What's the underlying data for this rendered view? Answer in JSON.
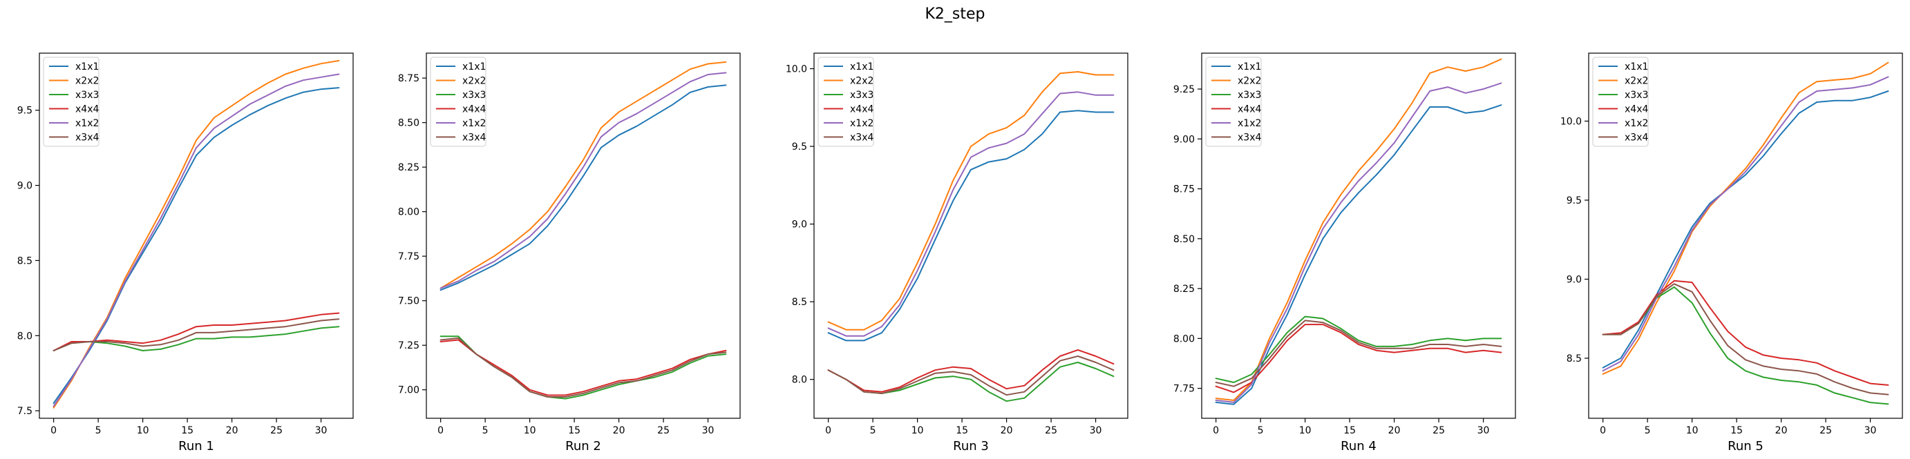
{
  "figure": {
    "title": "K2_step"
  },
  "chart_data": [
    {
      "type": "line",
      "xlabel": "Run 1",
      "xlim": [
        -1.6,
        33.6
      ],
      "ylim": [
        7.45,
        9.88
      ],
      "xticks": [
        0,
        5,
        10,
        15,
        20,
        25,
        30
      ],
      "yticks": [
        7.5,
        8.0,
        8.5,
        9.0,
        9.5
      ],
      "ytick_labels": [
        "7.5",
        "8.0",
        "8.5",
        "9.0",
        "9.5"
      ],
      "legend": "upper left",
      "x": [
        0,
        2,
        4,
        6,
        8,
        10,
        12,
        14,
        16,
        18,
        20,
        22,
        24,
        26,
        28,
        30,
        32
      ],
      "series": [
        {
          "name": "x1x1",
          "color": "#1f77b4",
          "values": [
            7.55,
            7.72,
            7.9,
            8.1,
            8.35,
            8.55,
            8.75,
            8.98,
            9.2,
            9.32,
            9.4,
            9.47,
            9.53,
            9.58,
            9.62,
            9.64,
            9.65
          ]
        },
        {
          "name": "x2x2",
          "color": "#ff7f0e",
          "values": [
            7.52,
            7.7,
            7.92,
            8.12,
            8.38,
            8.6,
            8.82,
            9.05,
            9.3,
            9.45,
            9.53,
            9.61,
            9.68,
            9.74,
            9.78,
            9.81,
            9.83
          ]
        },
        {
          "name": "x3x3",
          "color": "#2ca02c",
          "values": [
            7.9,
            7.95,
            7.96,
            7.95,
            7.93,
            7.9,
            7.91,
            7.94,
            7.98,
            7.98,
            7.99,
            7.99,
            8.0,
            8.01,
            8.03,
            8.05,
            8.06
          ]
        },
        {
          "name": "x4x4",
          "color": "#d62728",
          "values": [
            7.9,
            7.96,
            7.96,
            7.97,
            7.96,
            7.95,
            7.97,
            8.01,
            8.06,
            8.07,
            8.07,
            8.08,
            8.09,
            8.1,
            8.12,
            8.14,
            8.15
          ]
        },
        {
          "name": "x1x2",
          "color": "#9467bd",
          "values": [
            7.53,
            7.71,
            7.91,
            8.11,
            8.36,
            8.57,
            8.78,
            9.01,
            9.25,
            9.38,
            9.46,
            9.54,
            9.6,
            9.66,
            9.7,
            9.72,
            9.74
          ]
        },
        {
          "name": "x3x4",
          "color": "#8c564b",
          "values": [
            7.9,
            7.95,
            7.96,
            7.96,
            7.95,
            7.93,
            7.94,
            7.97,
            8.02,
            8.02,
            8.03,
            8.04,
            8.05,
            8.06,
            8.08,
            8.1,
            8.11
          ]
        }
      ]
    },
    {
      "type": "line",
      "xlabel": "Run 2",
      "xlim": [
        -1.6,
        33.6
      ],
      "ylim": [
        6.84,
        8.89
      ],
      "xticks": [
        0,
        5,
        10,
        15,
        20,
        25,
        30
      ],
      "yticks": [
        7.0,
        7.25,
        7.5,
        7.75,
        8.0,
        8.25,
        8.5,
        8.75
      ],
      "ytick_labels": [
        "7.00",
        "7.25",
        "7.50",
        "7.75",
        "8.00",
        "8.25",
        "8.50",
        "8.75"
      ],
      "legend": "upper left",
      "x": [
        0,
        2,
        4,
        6,
        8,
        10,
        12,
        14,
        16,
        18,
        20,
        22,
        24,
        26,
        28,
        30,
        32
      ],
      "series": [
        {
          "name": "x1x1",
          "color": "#1f77b4",
          "values": [
            7.56,
            7.6,
            7.65,
            7.7,
            7.76,
            7.82,
            7.92,
            8.05,
            8.2,
            8.36,
            8.43,
            8.48,
            8.54,
            8.6,
            8.67,
            8.7,
            8.71
          ]
        },
        {
          "name": "x2x2",
          "color": "#ff7f0e",
          "values": [
            7.57,
            7.63,
            7.69,
            7.75,
            7.82,
            7.9,
            8.0,
            8.14,
            8.29,
            8.47,
            8.56,
            8.62,
            8.68,
            8.74,
            8.8,
            8.83,
            8.84
          ]
        },
        {
          "name": "x3x3",
          "color": "#2ca02c",
          "values": [
            7.3,
            7.3,
            7.2,
            7.13,
            7.07,
            6.99,
            6.96,
            6.95,
            6.97,
            7.0,
            7.03,
            7.05,
            7.07,
            7.1,
            7.15,
            7.19,
            7.2
          ]
        },
        {
          "name": "x4x4",
          "color": "#d62728",
          "values": [
            7.27,
            7.28,
            7.2,
            7.14,
            7.08,
            7.0,
            6.97,
            6.97,
            6.99,
            7.02,
            7.05,
            7.06,
            7.09,
            7.12,
            7.17,
            7.2,
            7.22
          ]
        },
        {
          "name": "x1x2",
          "color": "#9467bd",
          "values": [
            7.57,
            7.61,
            7.67,
            7.72,
            7.79,
            7.86,
            7.96,
            8.1,
            8.25,
            8.42,
            8.5,
            8.55,
            8.61,
            8.67,
            8.73,
            8.77,
            8.78
          ]
        },
        {
          "name": "x3x4",
          "color": "#8c564b",
          "values": [
            7.28,
            7.29,
            7.2,
            7.13,
            7.07,
            6.99,
            6.96,
            6.96,
            6.98,
            7.01,
            7.04,
            7.05,
            7.08,
            7.11,
            7.16,
            7.2,
            7.21
          ]
        }
      ]
    },
    {
      "type": "line",
      "xlabel": "Run 3",
      "xlim": [
        -1.6,
        33.6
      ],
      "ylim": [
        7.75,
        10.1
      ],
      "xticks": [
        0,
        5,
        10,
        15,
        20,
        25,
        30
      ],
      "yticks": [
        8.0,
        8.5,
        9.0,
        9.5,
        10.0
      ],
      "ytick_labels": [
        "8.0",
        "8.5",
        "9.0",
        "9.5",
        "10.0"
      ],
      "legend": "upper left",
      "x": [
        0,
        2,
        4,
        6,
        8,
        10,
        12,
        14,
        16,
        18,
        20,
        22,
        24,
        26,
        28,
        30,
        32
      ],
      "series": [
        {
          "name": "x1x1",
          "color": "#1f77b4",
          "values": [
            8.3,
            8.25,
            8.25,
            8.3,
            8.45,
            8.65,
            8.9,
            9.15,
            9.35,
            9.4,
            9.42,
            9.48,
            9.58,
            9.72,
            9.73,
            9.72,
            9.72
          ]
        },
        {
          "name": "x2x2",
          "color": "#ff7f0e",
          "values": [
            8.37,
            8.32,
            8.32,
            8.38,
            8.52,
            8.75,
            9.0,
            9.28,
            9.5,
            9.58,
            9.62,
            9.7,
            9.85,
            9.97,
            9.98,
            9.96,
            9.96
          ]
        },
        {
          "name": "x3x3",
          "color": "#2ca02c",
          "values": [
            8.06,
            8.0,
            7.92,
            7.91,
            7.93,
            7.97,
            8.01,
            8.02,
            8.0,
            7.92,
            7.86,
            7.88,
            7.98,
            8.08,
            8.11,
            8.07,
            8.02
          ]
        },
        {
          "name": "x4x4",
          "color": "#d62728",
          "values": [
            8.06,
            8.0,
            7.93,
            7.92,
            7.95,
            8.01,
            8.06,
            8.08,
            8.07,
            8.0,
            7.94,
            7.96,
            8.06,
            8.15,
            8.19,
            8.15,
            8.1
          ]
        },
        {
          "name": "x1x2",
          "color": "#9467bd",
          "values": [
            8.33,
            8.28,
            8.28,
            8.34,
            8.48,
            8.7,
            8.95,
            9.22,
            9.43,
            9.49,
            9.52,
            9.58,
            9.71,
            9.84,
            9.85,
            9.83,
            9.83
          ]
        },
        {
          "name": "x3x4",
          "color": "#8c564b",
          "values": [
            8.06,
            8.0,
            7.92,
            7.91,
            7.94,
            7.99,
            8.04,
            8.05,
            8.03,
            7.96,
            7.9,
            7.92,
            8.02,
            8.12,
            8.15,
            8.11,
            8.06
          ]
        }
      ]
    },
    {
      "type": "line",
      "xlabel": "Run 4",
      "xlim": [
        -1.6,
        33.6
      ],
      "ylim": [
        7.6,
        9.43
      ],
      "xticks": [
        0,
        5,
        10,
        15,
        20,
        25,
        30
      ],
      "yticks": [
        7.75,
        8.0,
        8.25,
        8.5,
        8.75,
        9.0,
        9.25
      ],
      "ytick_labels": [
        "7.75",
        "8.00",
        "8.25",
        "8.50",
        "8.75",
        "9.00",
        "9.25"
      ],
      "legend": "upper left",
      "x": [
        0,
        2,
        4,
        6,
        8,
        10,
        12,
        14,
        16,
        18,
        20,
        22,
        24,
        26,
        28,
        30,
        32
      ],
      "series": [
        {
          "name": "x1x1",
          "color": "#1f77b4",
          "values": [
            7.68,
            7.67,
            7.75,
            7.95,
            8.12,
            8.32,
            8.5,
            8.63,
            8.73,
            8.82,
            8.92,
            9.04,
            9.16,
            9.16,
            9.13,
            9.14,
            9.17
          ]
        },
        {
          "name": "x2x2",
          "color": "#ff7f0e",
          "values": [
            7.7,
            7.69,
            7.78,
            8.0,
            8.18,
            8.39,
            8.58,
            8.72,
            8.84,
            8.94,
            9.05,
            9.18,
            9.33,
            9.36,
            9.34,
            9.36,
            9.4
          ]
        },
        {
          "name": "x3x3",
          "color": "#2ca02c",
          "values": [
            7.8,
            7.78,
            7.82,
            7.92,
            8.03,
            8.11,
            8.1,
            8.05,
            7.99,
            7.96,
            7.96,
            7.97,
            7.99,
            8.0,
            7.99,
            8.0,
            8.0
          ]
        },
        {
          "name": "x4x4",
          "color": "#d62728",
          "values": [
            7.76,
            7.73,
            7.78,
            7.88,
            7.99,
            8.07,
            8.07,
            8.03,
            7.97,
            7.94,
            7.93,
            7.94,
            7.95,
            7.95,
            7.93,
            7.94,
            7.93
          ]
        },
        {
          "name": "x1x2",
          "color": "#9467bd",
          "values": [
            7.69,
            7.68,
            7.77,
            7.98,
            8.15,
            8.36,
            8.55,
            8.68,
            8.79,
            8.88,
            8.98,
            9.11,
            9.24,
            9.26,
            9.23,
            9.25,
            9.28
          ]
        },
        {
          "name": "x3x4",
          "color": "#8c564b",
          "values": [
            7.78,
            7.76,
            7.8,
            7.9,
            8.01,
            8.09,
            8.08,
            8.04,
            7.98,
            7.95,
            7.95,
            7.95,
            7.97,
            7.97,
            7.96,
            7.97,
            7.96
          ]
        }
      ]
    },
    {
      "type": "line",
      "xlabel": "Run 5",
      "xlim": [
        -1.6,
        33.6
      ],
      "ylim": [
        8.12,
        10.43
      ],
      "xticks": [
        0,
        5,
        10,
        15,
        20,
        25,
        30
      ],
      "yticks": [
        8.5,
        9.0,
        9.5,
        10.0
      ],
      "ytick_labels": [
        "8.5",
        "9.0",
        "9.5",
        "10.0"
      ],
      "legend": "upper left",
      "x": [
        0,
        2,
        4,
        6,
        8,
        10,
        12,
        14,
        16,
        18,
        20,
        22,
        24,
        26,
        28,
        30,
        32
      ],
      "series": [
        {
          "name": "x1x1",
          "color": "#1f77b4",
          "values": [
            8.44,
            8.5,
            8.68,
            8.9,
            9.12,
            9.33,
            9.48,
            9.57,
            9.66,
            9.78,
            9.92,
            10.05,
            10.12,
            10.13,
            10.13,
            10.15,
            10.19
          ]
        },
        {
          "name": "x2x2",
          "color": "#ff7f0e",
          "values": [
            8.4,
            8.45,
            8.62,
            8.85,
            9.05,
            9.3,
            9.46,
            9.58,
            9.7,
            9.85,
            10.02,
            10.18,
            10.25,
            10.26,
            10.27,
            10.3,
            10.37
          ]
        },
        {
          "name": "x3x3",
          "color": "#2ca02c",
          "values": [
            8.65,
            8.65,
            8.72,
            8.88,
            8.95,
            8.85,
            8.66,
            8.5,
            8.42,
            8.38,
            8.36,
            8.35,
            8.33,
            8.28,
            8.25,
            8.22,
            8.21
          ]
        },
        {
          "name": "x4x4",
          "color": "#d62728",
          "values": [
            8.65,
            8.66,
            8.73,
            8.9,
            8.99,
            8.98,
            8.82,
            8.67,
            8.57,
            8.52,
            8.5,
            8.49,
            8.47,
            8.42,
            8.38,
            8.34,
            8.33
          ]
        },
        {
          "name": "x1x2",
          "color": "#9467bd",
          "values": [
            8.42,
            8.48,
            8.65,
            8.88,
            9.08,
            9.31,
            9.47,
            9.57,
            9.68,
            9.82,
            9.97,
            10.12,
            10.19,
            10.2,
            10.21,
            10.23,
            10.28
          ]
        },
        {
          "name": "x3x4",
          "color": "#8c564b",
          "values": [
            8.65,
            8.65,
            8.72,
            8.89,
            8.97,
            8.92,
            8.74,
            8.58,
            8.49,
            8.45,
            8.43,
            8.42,
            8.4,
            8.35,
            8.31,
            8.28,
            8.27
          ]
        }
      ]
    }
  ]
}
